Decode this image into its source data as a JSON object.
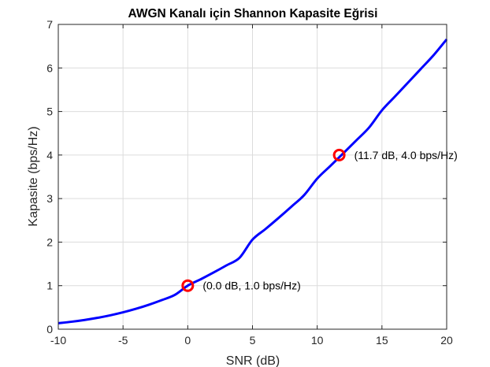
{
  "chart_data": {
    "type": "line",
    "title": "AWGN Kanalı için Shannon Kapasite Eğrisi",
    "xlabel": "SNR (dB)",
    "ylabel": "Kapasite (bps/Hz)",
    "xlim": [
      -10,
      20
    ],
    "ylim": [
      0,
      7
    ],
    "xticks": [
      -10,
      -5,
      0,
      5,
      10,
      15,
      20
    ],
    "yticks": [
      0,
      1,
      2,
      3,
      4,
      5,
      6,
      7
    ],
    "grid": true,
    "series": [
      {
        "color": "#0000ff",
        "x": [
          -10,
          -9,
          -8,
          -7,
          -6,
          -5,
          -4,
          -3,
          -2,
          -1,
          0,
          1,
          2,
          3,
          4,
          5,
          6,
          7,
          8,
          9,
          10,
          11,
          12,
          13,
          14,
          15,
          16,
          17,
          18,
          19,
          20
        ],
        "y": [
          0.1375,
          0.1705,
          0.2107,
          0.2594,
          0.3178,
          0.3871,
          0.4683,
          0.5621,
          0.6688,
          0.7881,
          1.0,
          1.1466,
          1.3026,
          1.4673,
          1.6402,
          2.0574,
          2.2996,
          2.5516,
          2.8131,
          3.083,
          3.4594,
          3.7454,
          4.036,
          4.3309,
          4.6295,
          5.0278,
          5.3424,
          5.659,
          5.9773,
          6.297,
          6.6582
        ]
      }
    ],
    "markers": [
      {
        "x": 0,
        "y": 1.0,
        "color": "#ff0000",
        "label": "(0.0 dB, 1.0 bps/Hz)"
      },
      {
        "x": 11.7,
        "y": 4.0,
        "color": "#ff0000",
        "label": "(11.7 dB, 4.0 bps/Hz)"
      }
    ]
  }
}
